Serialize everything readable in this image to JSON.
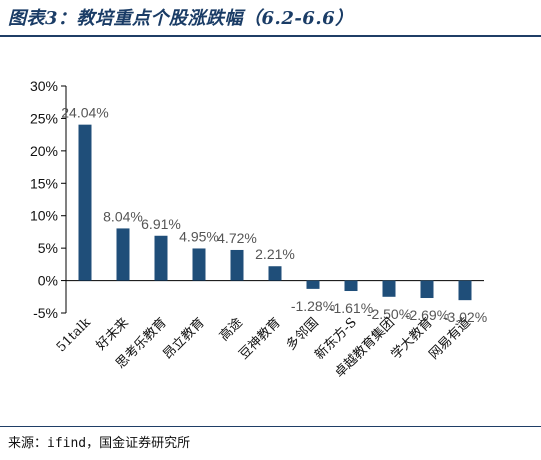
{
  "header": {
    "title": "图表3：教培重点个股涨跌幅（6.2-6.6）"
  },
  "footer": {
    "source": "来源：ifind，国金证券研究所"
  },
  "colors": {
    "bar": "#1f4e79",
    "rule": "#1f3e66",
    "title": "#1a3c66"
  },
  "chart_data": {
    "type": "bar",
    "title": "",
    "xlabel": "",
    "ylabel": "",
    "ylim": [
      -5,
      30
    ],
    "yticks": [
      -5,
      0,
      5,
      10,
      15,
      20,
      25,
      30
    ],
    "ytick_labels": [
      "-5%",
      "0%",
      "5%",
      "10%",
      "15%",
      "20%",
      "25%",
      "30%"
    ],
    "grid": false,
    "categories": [
      "51talk",
      "好未来",
      "思考乐教育",
      "昂立教育",
      "高途",
      "豆神教育",
      "多邻国",
      "新东方-S",
      "卓越教育集团",
      "学大教育",
      "网易有道"
    ],
    "values": [
      24.04,
      8.04,
      6.91,
      4.95,
      4.72,
      2.21,
      -1.28,
      -1.61,
      -2.5,
      -2.69,
      -3.02
    ],
    "data_labels": [
      "24.04%",
      "8.04%",
      "6.91%",
      "4.95%",
      "4.72%",
      "2.21%",
      "-1.28%",
      "-1.61%",
      "-2.50%",
      "-2.69%",
      "-3.02%"
    ]
  }
}
